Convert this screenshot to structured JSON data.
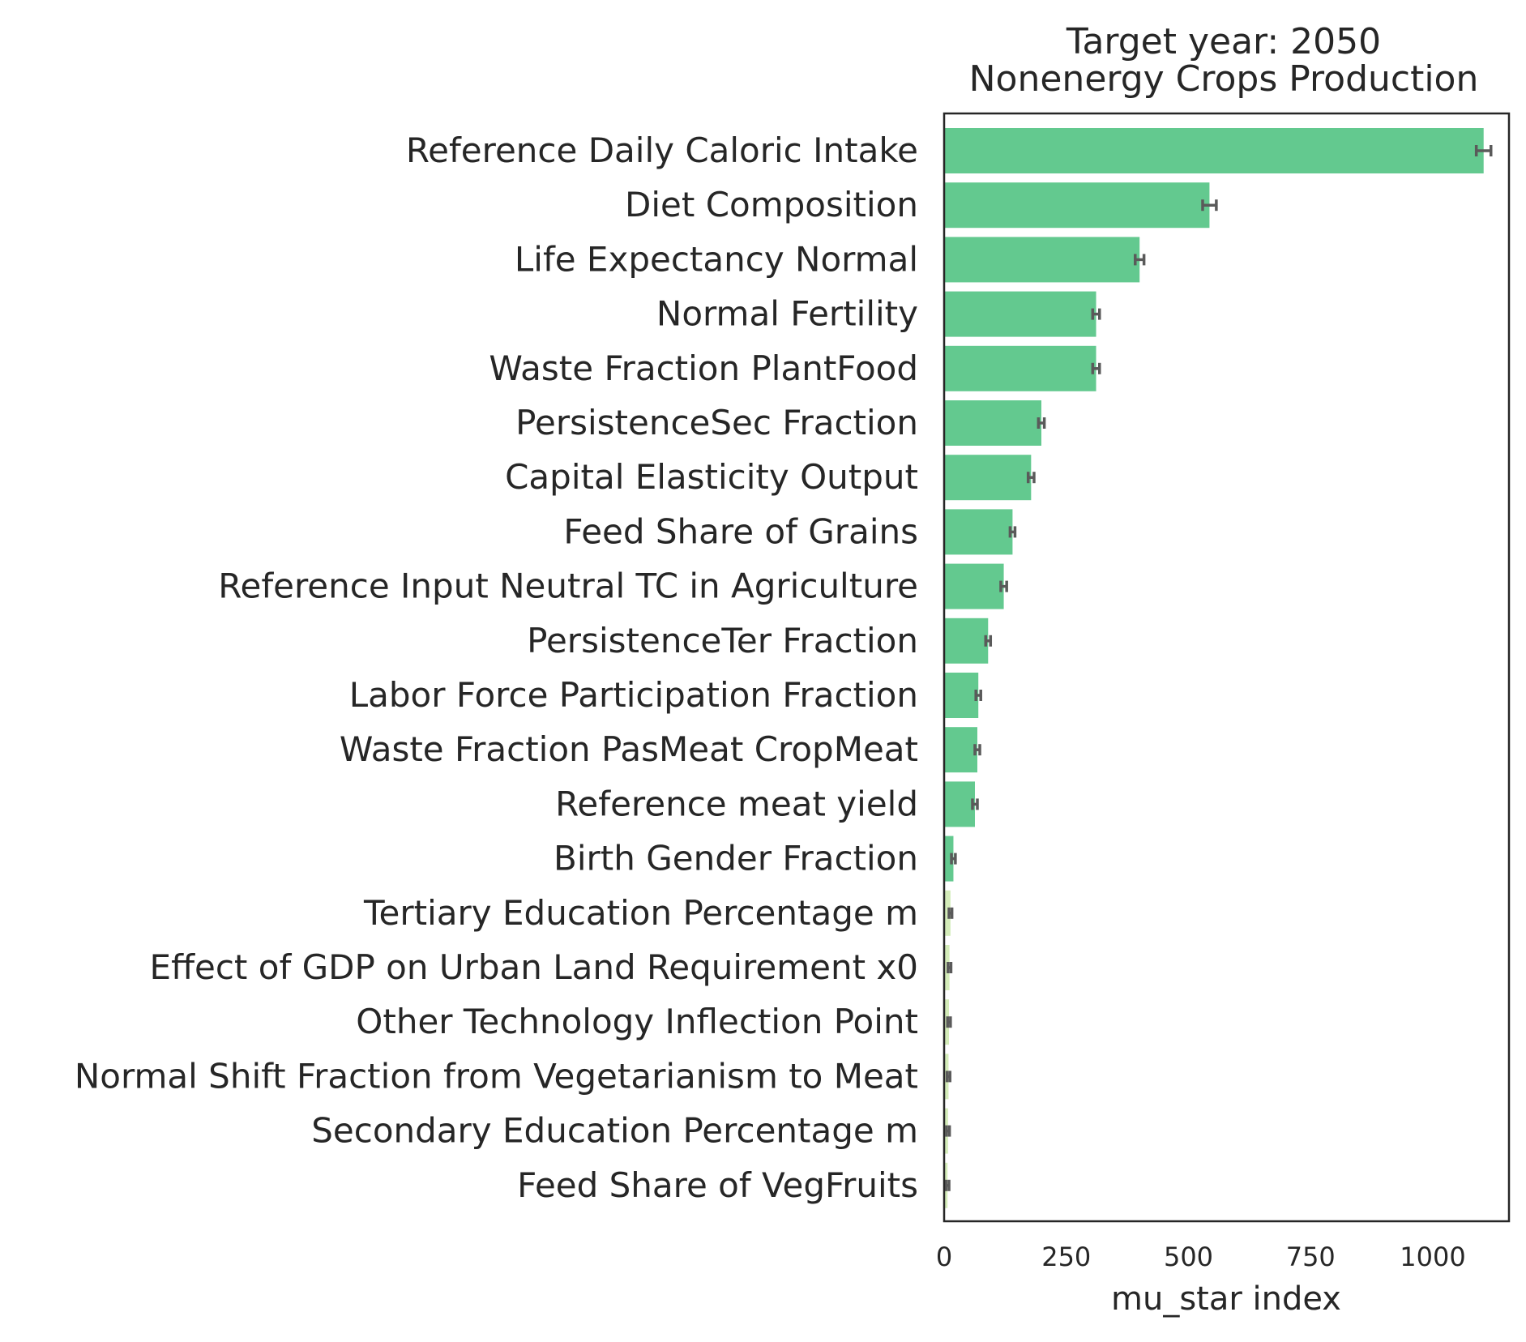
{
  "chart_data": {
    "type": "bar",
    "orientation": "horizontal",
    "title_line1": "Target year: 2050",
    "title_line2": "Nonenergy Crops Production",
    "xlabel": "mu_star index",
    "ylabel": "",
    "xlim": [
      0,
      1160
    ],
    "xticks": [
      0,
      250,
      500,
      750,
      1000
    ],
    "xtick_labels": [
      "0",
      "250",
      "500",
      "750",
      "1000"
    ],
    "grid": false,
    "colors": {
      "high": "#63c98f",
      "low": "#d4ecb9",
      "error": "#5a5a5a",
      "axis": "#262626"
    },
    "categories": [
      "Reference Daily Caloric Intake",
      "Diet Composition",
      "Life Expectancy Normal",
      "Normal Fertility",
      "Waste Fraction PlantFood",
      "PersistenceSec Fraction",
      "Capital Elasticity Output",
      "Feed Share of Grains",
      "Reference Input Neutral TC in Agriculture",
      "PersistenceTer Fraction",
      "Labor Force Participation Fraction",
      "Waste Fraction PasMeat CropMeat",
      "Reference meat yield",
      "Birth Gender Fraction",
      "Tertiary Education Percentage m",
      "Effect of GDP on Urban Land Requirement x0",
      "Other Technology Inflection Point",
      "Normal Shift Fraction from Vegetarianism to Meat",
      "Secondary Education Percentage m",
      "Feed Share of VegFruits"
    ],
    "values": [
      1104,
      543,
      400,
      311,
      311,
      199,
      178,
      140,
      122,
      90,
      70,
      68,
      63,
      19,
      13,
      11,
      10,
      9,
      8,
      7
    ],
    "errors": [
      15,
      14,
      9,
      7,
      7,
      6,
      6,
      5,
      6,
      5,
      5,
      5,
      5,
      4,
      3,
      3,
      3,
      3,
      3,
      3
    ],
    "color_group": [
      "high",
      "high",
      "high",
      "high",
      "high",
      "high",
      "high",
      "high",
      "high",
      "high",
      "high",
      "high",
      "high",
      "high",
      "low",
      "low",
      "low",
      "low",
      "low",
      "low"
    ]
  }
}
